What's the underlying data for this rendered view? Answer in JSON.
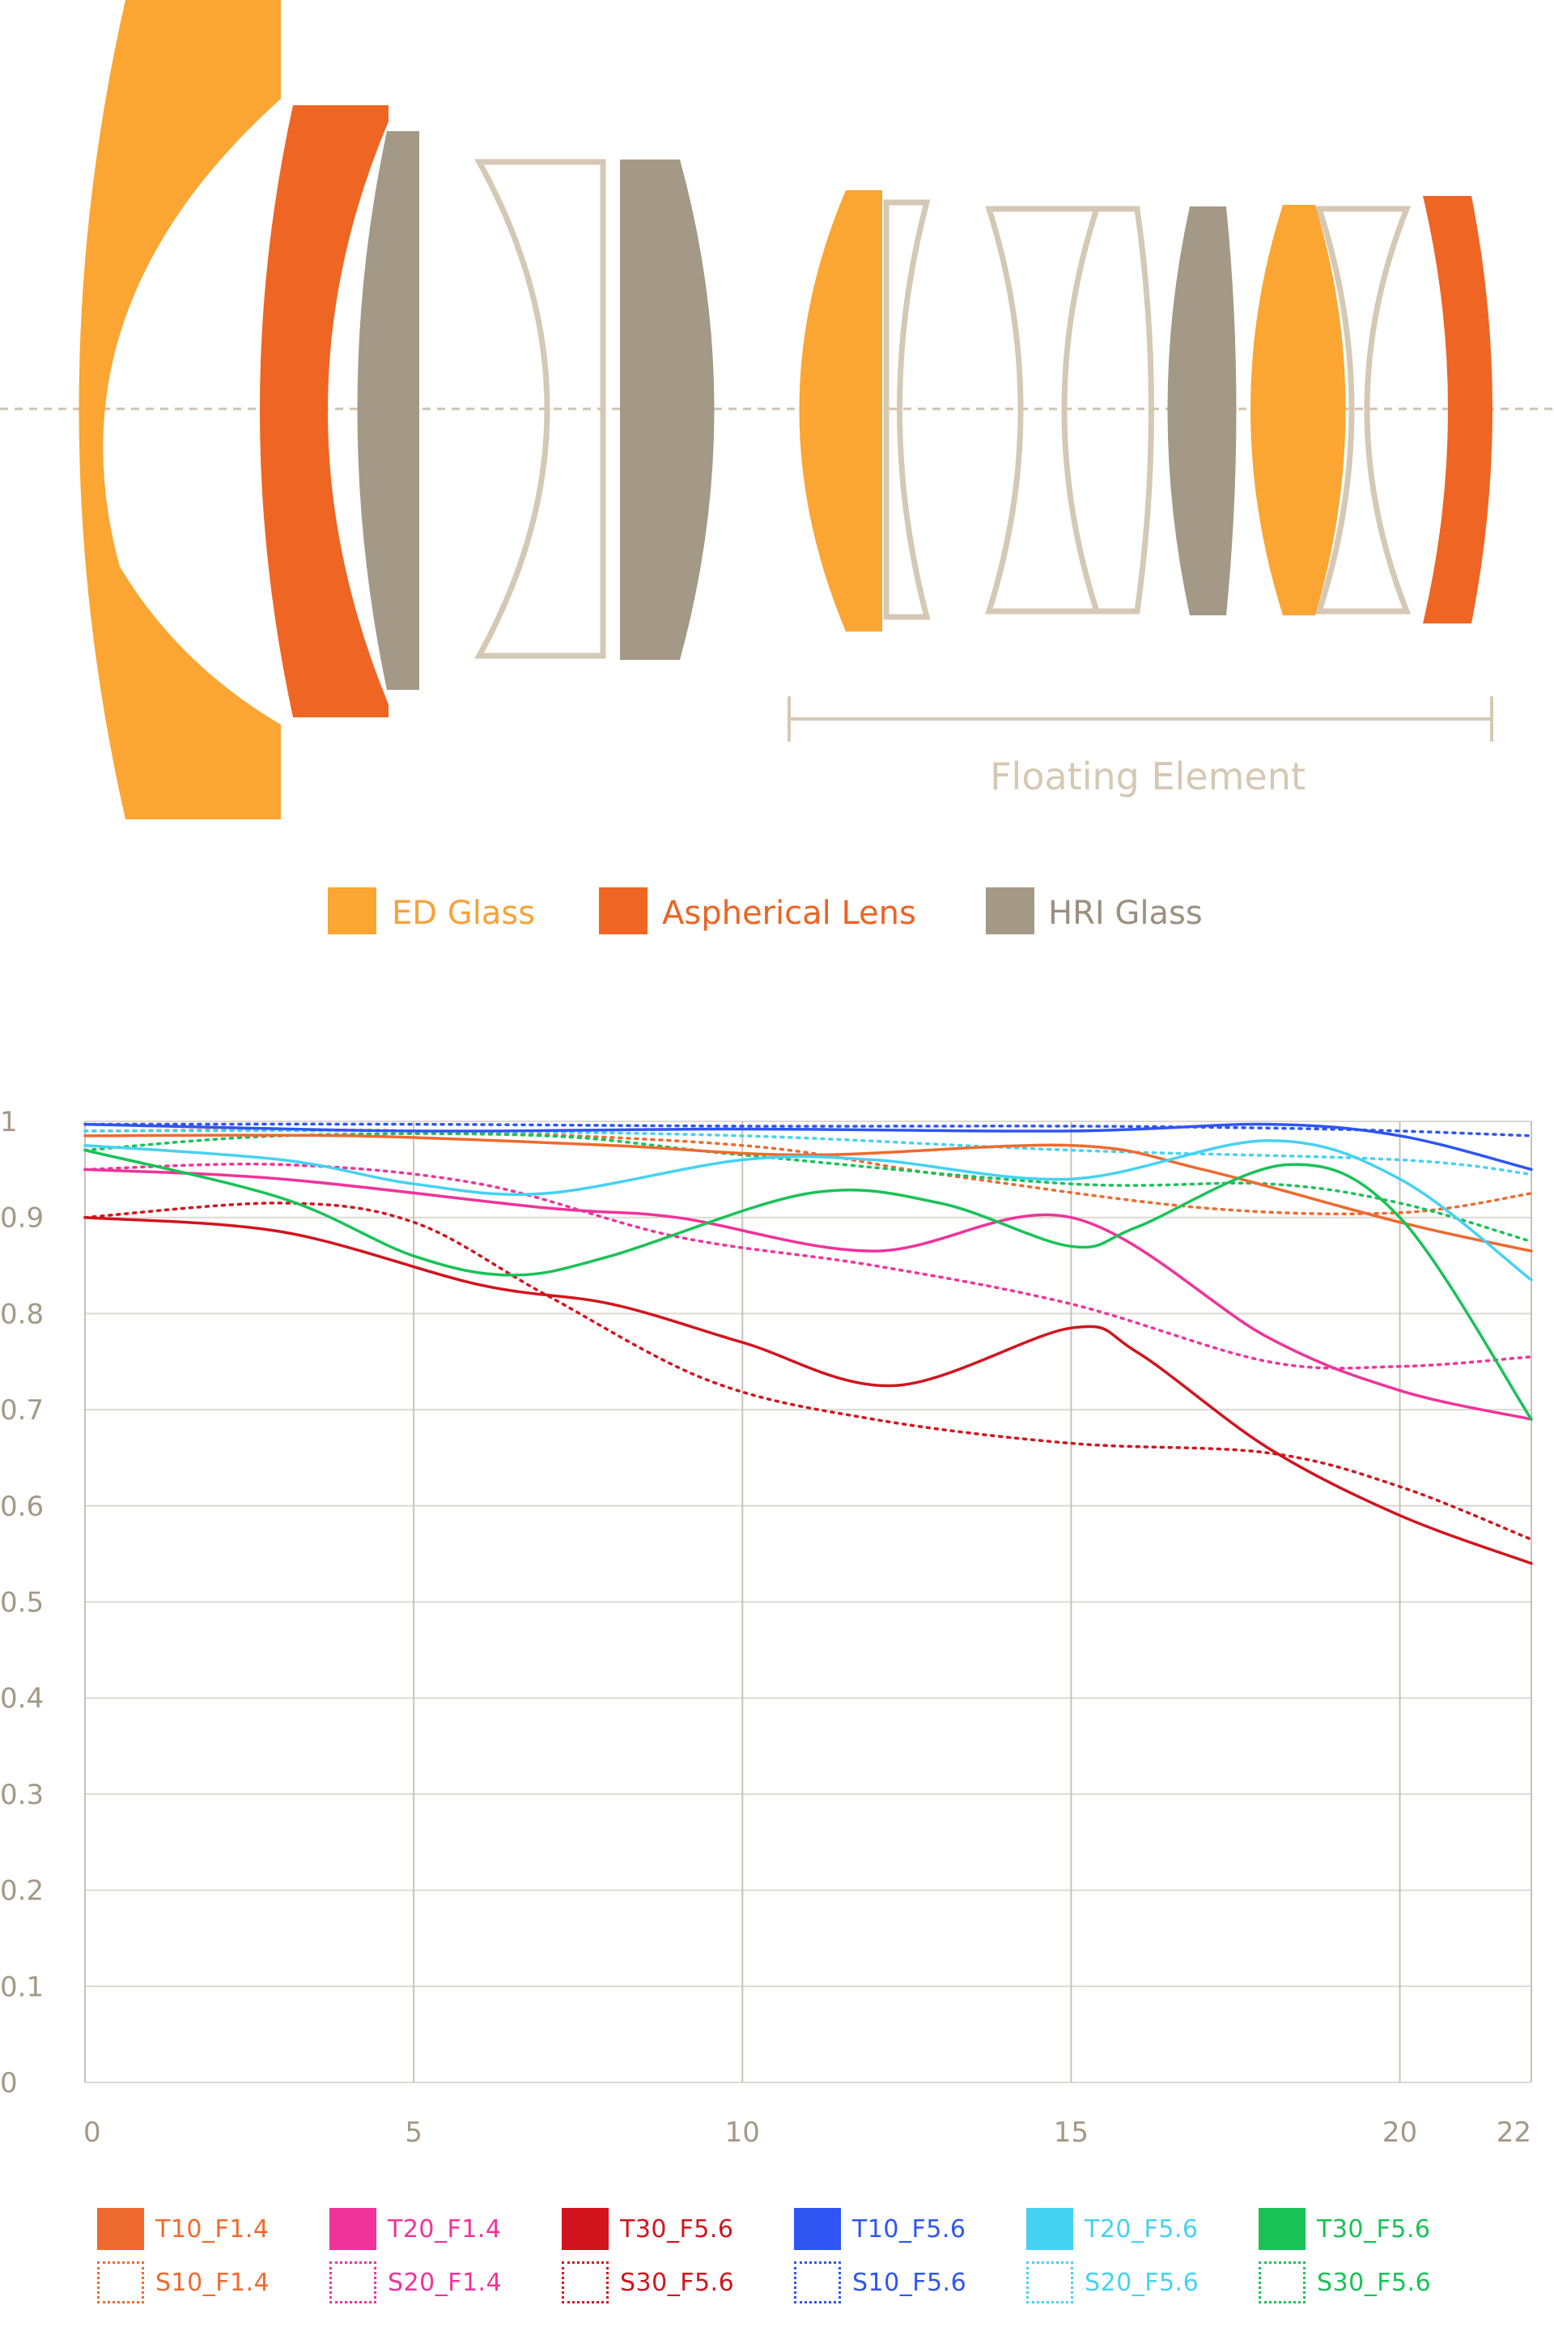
{
  "diagram": {
    "floating_label": "Floating Element",
    "legend": [
      {
        "label": "ED Glass",
        "color": "#FBA533",
        "text_color": "#F6A23A"
      },
      {
        "label": "Aspherical Lens",
        "color": "#EF6523",
        "text_color": "#EC6425"
      },
      {
        "label": "HRI Glass",
        "color": "#A49886",
        "text_color": "#9B9080"
      }
    ],
    "element_colors": {
      "ed": "#FBA533",
      "asph": "#EF6523",
      "hri": "#A49886",
      "outline": "#D5C8B4",
      "axis": "#CFC3AE"
    }
  },
  "chart_data": {
    "type": "line",
    "title": "",
    "xlabel": "",
    "ylabel": "",
    "xlim": [
      0,
      22
    ],
    "ylim": [
      0,
      1
    ],
    "x_ticks": [
      0,
      5,
      10,
      15,
      20,
      22
    ],
    "x_tick_labels": [
      "0",
      "5",
      "10",
      "15",
      "20",
      "22"
    ],
    "y_ticks": [
      0,
      0.1,
      0.2,
      0.3,
      0.4,
      0.5,
      0.6,
      0.7,
      0.8,
      0.9,
      1
    ],
    "y_tick_labels": [
      "0",
      "0.1",
      "0.2",
      "0.3",
      "0.4",
      "0.5",
      "0.6",
      "0.7",
      "0.8",
      "0.9",
      "1"
    ],
    "grid": true,
    "legend_position": "bottom",
    "series": [
      {
        "name": "T10_F1.4",
        "style": "solid",
        "color": "#EF6A2E",
        "x": [
          0,
          4,
          8,
          11,
          15,
          17,
          20,
          22
        ],
        "y": [
          0.985,
          0.985,
          0.975,
          0.965,
          0.975,
          0.95,
          0.895,
          0.865
        ]
      },
      {
        "name": "T20_F1.4",
        "style": "solid",
        "color": "#F0339A",
        "x": [
          0,
          3,
          7,
          9,
          12,
          15,
          18,
          20,
          22
        ],
        "y": [
          0.95,
          0.94,
          0.91,
          0.9,
          0.865,
          0.9,
          0.775,
          0.72,
          0.69
        ]
      },
      {
        "name": "T30_F5.6",
        "style": "solid",
        "color": "#D2141E",
        "x": [
          0,
          3,
          6,
          8,
          10,
          12.3,
          15,
          16,
          18,
          20,
          22
        ],
        "y": [
          0.9,
          0.885,
          0.83,
          0.81,
          0.77,
          0.725,
          0.785,
          0.76,
          0.66,
          0.59,
          0.54
        ]
      },
      {
        "name": "T10_F5.6",
        "style": "solid",
        "color": "#2F55F2",
        "x": [
          0,
          5,
          10,
          15,
          18,
          20,
          22
        ],
        "y": [
          0.997,
          0.99,
          0.992,
          0.99,
          0.997,
          0.985,
          0.95
        ]
      },
      {
        "name": "T20_F5.6",
        "style": "solid",
        "color": "#46D2F2",
        "x": [
          0,
          3,
          5,
          7,
          10,
          12,
          15,
          18,
          20,
          22
        ],
        "y": [
          0.975,
          0.96,
          0.935,
          0.925,
          0.96,
          0.96,
          0.94,
          0.98,
          0.94,
          0.835
        ]
      },
      {
        "name": "T30_F5.6",
        "style": "solid",
        "color": "#19C257",
        "x": [
          0,
          3,
          5,
          6.5,
          8,
          11,
          13,
          15,
          16,
          18.3,
          20,
          22
        ],
        "y": [
          0.97,
          0.92,
          0.86,
          0.84,
          0.86,
          0.925,
          0.915,
          0.87,
          0.89,
          0.955,
          0.9,
          0.69
        ]
      },
      {
        "name": "S10_F1.4",
        "style": "dotted",
        "color": "#EF6A2E",
        "x": [
          0,
          5,
          10,
          13,
          17,
          20,
          22
        ],
        "y": [
          0.99,
          0.99,
          0.975,
          0.945,
          0.91,
          0.905,
          0.925
        ]
      },
      {
        "name": "S20_F1.4",
        "style": "dotted",
        "color": "#F0339A",
        "x": [
          0,
          3,
          6,
          9,
          12,
          15,
          18,
          20,
          22
        ],
        "y": [
          0.95,
          0.955,
          0.935,
          0.88,
          0.85,
          0.81,
          0.75,
          0.745,
          0.755
        ]
      },
      {
        "name": "S30_F5.6",
        "style": "dotted",
        "color": "#D2141E",
        "x": [
          0,
          3,
          5,
          7,
          9.5,
          12,
          15,
          18,
          20,
          22
        ],
        "y": [
          0.9,
          0.915,
          0.895,
          0.82,
          0.73,
          0.69,
          0.665,
          0.655,
          0.62,
          0.565
        ]
      },
      {
        "name": "S10_F5.6",
        "style": "dotted",
        "color": "#2F55F2",
        "x": [
          0,
          5,
          10,
          15,
          18,
          20,
          22
        ],
        "y": [
          0.997,
          0.997,
          0.995,
          0.995,
          0.993,
          0.99,
          0.985
        ]
      },
      {
        "name": "S20_F5.6",
        "style": "dotted",
        "color": "#46D2F2",
        "x": [
          0,
          5,
          10,
          15,
          20,
          22
        ],
        "y": [
          0.99,
          0.99,
          0.985,
          0.97,
          0.96,
          0.945
        ]
      },
      {
        "name": "S30_F5.6",
        "style": "dotted",
        "color": "#19C257",
        "x": [
          0,
          3,
          7,
          10,
          15,
          18,
          20,
          22
        ],
        "y": [
          0.97,
          0.985,
          0.985,
          0.965,
          0.935,
          0.935,
          0.915,
          0.875
        ]
      }
    ]
  },
  "legend_rows": [
    [
      {
        "label": "T10_F1.4",
        "color": "#EF6A2E",
        "style": "solid"
      },
      {
        "label": "T20_F1.4",
        "color": "#F0339A",
        "style": "solid"
      },
      {
        "label": "T30_F5.6",
        "color": "#D2141E",
        "style": "solid"
      },
      {
        "label": "T10_F5.6",
        "color": "#2F55F2",
        "style": "solid"
      },
      {
        "label": "T20_F5.6",
        "color": "#46D2F2",
        "style": "solid"
      },
      {
        "label": "T30_F5.6",
        "color": "#19C257",
        "style": "solid"
      }
    ],
    [
      {
        "label": "S10_F1.4",
        "color": "#EF6A2E",
        "style": "dotted"
      },
      {
        "label": "S20_F1.4",
        "color": "#F0339A",
        "style": "dotted"
      },
      {
        "label": "S30_F5.6",
        "color": "#D2141E",
        "style": "dotted"
      },
      {
        "label": "S10_F5.6",
        "color": "#2F55F2",
        "style": "dotted"
      },
      {
        "label": "S20_F5.6",
        "color": "#46D2F2",
        "style": "dotted"
      },
      {
        "label": "S30_F5.6",
        "color": "#19C257",
        "style": "dotted"
      }
    ]
  ]
}
